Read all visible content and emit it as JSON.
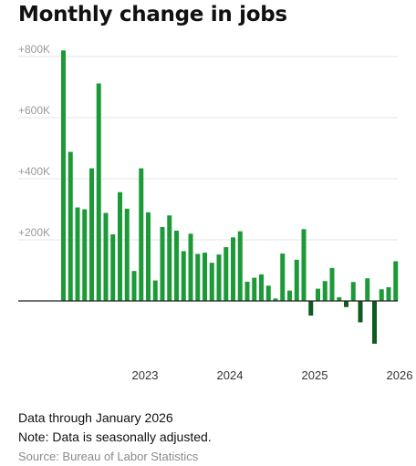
{
  "title": "Monthly change in jobs",
  "notes": {
    "data_through": "Data through January 2026",
    "note": "Note: Data is seasonally adjusted.",
    "source": "Source: Bureau of Labor Statistics"
  },
  "colors": {
    "positive": "#1b9a37",
    "negative": "#0f5a1f",
    "grid": "#e4e4e4",
    "axis": "#222222",
    "tick_text": "#9a9a9a",
    "year_text": "#333333"
  },
  "chart_data": {
    "type": "bar",
    "title": "Monthly change in jobs",
    "xlabel": "",
    "ylabel": "",
    "ylim": [
      -230000,
      830000
    ],
    "y_ticks": [
      {
        "value": 200000,
        "label": "+200K"
      },
      {
        "value": 400000,
        "label": "+400K"
      },
      {
        "value": 600000,
        "label": "+600K"
      },
      {
        "value": 800000,
        "label": "+800K"
      }
    ],
    "x_year_labels": [
      {
        "label": "2023",
        "index": 12
      },
      {
        "label": "2024",
        "index": 24
      },
      {
        "label": "2025",
        "index": 36
      },
      {
        "label": "2026",
        "index": 48
      }
    ],
    "grid": true,
    "legend": "none",
    "values": [
      820000,
      488000,
      306000,
      300000,
      434000,
      712000,
      288000,
      218000,
      356000,
      302000,
      98000,
      434000,
      290000,
      67000,
      242000,
      280000,
      230000,
      163000,
      220000,
      154000,
      158000,
      125000,
      152000,
      176000,
      208000,
      228000,
      63000,
      76000,
      87000,
      50000,
      8000,
      155000,
      34000,
      135000,
      235000,
      -48000,
      40000,
      65000,
      108000,
      12000,
      -20000,
      62000,
      -70000,
      74000,
      -140000,
      38000,
      45000,
      130000
    ]
  }
}
